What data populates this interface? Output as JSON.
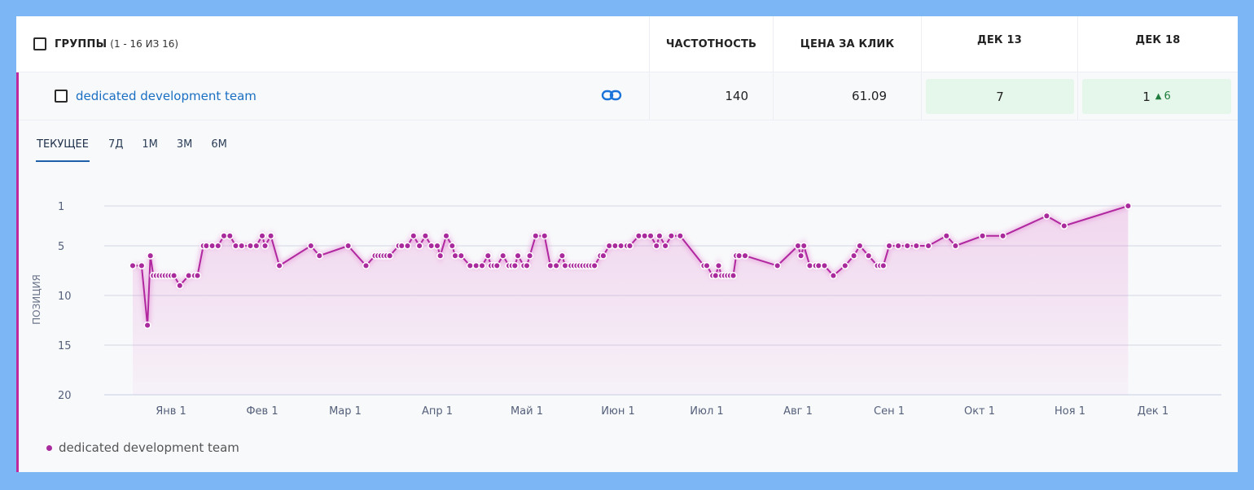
{
  "header": {
    "groups_label": "ГРУППЫ",
    "groups_count": "(1 - 16 ИЗ 16)",
    "frequency_label": "ЧАСТОТНОСТЬ",
    "cpc_label": "ЦЕНА ЗА КЛИК",
    "date1_label": "ДЕК 13",
    "date2_label": "ДЕК 18"
  },
  "row": {
    "keyword": "dedicated development team",
    "frequency": "140",
    "cpc": "61.09",
    "date1_position": "7",
    "date2_position": "1",
    "date2_change": "6"
  },
  "tabs": [
    "ТЕКУЩЕЕ",
    "7Д",
    "1М",
    "3М",
    "6М"
  ],
  "chart_data": {
    "type": "line",
    "ylabel": "ПОЗИЦИЯ",
    "y_reversed": true,
    "ylim": [
      1,
      20
    ],
    "yticks": [
      "1",
      "5",
      "10",
      "15",
      "20"
    ],
    "xticks": [
      "Янв 1",
      "Фев 1",
      "Мар 1",
      "Апр 1",
      "Май 1",
      "Июн 1",
      "Июл 1",
      "Авг 1",
      "Сен 1",
      "Окт 1",
      "Ноя 1",
      "Дек 1"
    ],
    "grid": true,
    "legend_position": "bottom-left",
    "series": [
      {
        "name": "dedicated development team",
        "color": "#a92a9c",
        "points": [
          [
            "2023-12-19",
            7
          ],
          [
            "2023-12-22",
            7
          ],
          [
            "2023-12-24",
            13
          ],
          [
            "2023-12-25",
            6
          ],
          [
            "2023-12-26",
            8
          ],
          [
            "2023-12-27",
            8
          ],
          [
            "2023-12-28",
            8
          ],
          [
            "2023-12-29",
            8
          ],
          [
            "2023-12-30",
            8
          ],
          [
            "2023-12-31",
            8
          ],
          [
            "2024-01-01",
            8
          ],
          [
            "2024-01-02",
            8
          ],
          [
            "2024-01-04",
            9
          ],
          [
            "2024-01-07",
            8
          ],
          [
            "2024-01-09",
            8
          ],
          [
            "2024-01-10",
            8
          ],
          [
            "2024-01-12",
            5
          ],
          [
            "2024-01-13",
            5
          ],
          [
            "2024-01-15",
            5
          ],
          [
            "2024-01-17",
            5
          ],
          [
            "2024-01-19",
            4
          ],
          [
            "2024-01-21",
            4
          ],
          [
            "2024-01-23",
            5
          ],
          [
            "2024-01-25",
            5
          ],
          [
            "2024-01-28",
            5
          ],
          [
            "2024-01-30",
            5
          ],
          [
            "2024-02-01",
            4
          ],
          [
            "2024-02-02",
            5
          ],
          [
            "2024-02-04",
            4
          ],
          [
            "2024-02-07",
            7
          ],
          [
            "2024-02-18",
            5
          ],
          [
            "2024-02-21",
            6
          ],
          [
            "2024-03-02",
            5
          ],
          [
            "2024-03-08",
            7
          ],
          [
            "2024-03-11",
            6
          ],
          [
            "2024-03-12",
            6
          ],
          [
            "2024-03-13",
            6
          ],
          [
            "2024-03-14",
            6
          ],
          [
            "2024-03-15",
            6
          ],
          [
            "2024-03-16",
            6
          ],
          [
            "2024-03-19",
            5
          ],
          [
            "2024-03-20",
            5
          ],
          [
            "2024-03-22",
            5
          ],
          [
            "2024-03-24",
            4
          ],
          [
            "2024-03-26",
            5
          ],
          [
            "2024-03-28",
            4
          ],
          [
            "2024-03-30",
            5
          ],
          [
            "2024-04-01",
            5
          ],
          [
            "2024-04-02",
            6
          ],
          [
            "2024-04-04",
            4
          ],
          [
            "2024-04-06",
            5
          ],
          [
            "2024-04-07",
            6
          ],
          [
            "2024-04-09",
            6
          ],
          [
            "2024-04-12",
            7
          ],
          [
            "2024-04-14",
            7
          ],
          [
            "2024-04-16",
            7
          ],
          [
            "2024-04-18",
            6
          ],
          [
            "2024-04-19",
            7
          ],
          [
            "2024-04-20",
            7
          ],
          [
            "2024-04-21",
            7
          ],
          [
            "2024-04-23",
            6
          ],
          [
            "2024-04-25",
            7
          ],
          [
            "2024-04-26",
            7
          ],
          [
            "2024-04-27",
            7
          ],
          [
            "2024-04-28",
            6
          ],
          [
            "2024-04-30",
            7
          ],
          [
            "2024-05-01",
            7
          ],
          [
            "2024-05-02",
            6
          ],
          [
            "2024-05-04",
            4
          ],
          [
            "2024-05-07",
            4
          ],
          [
            "2024-05-09",
            7
          ],
          [
            "2024-05-11",
            7
          ],
          [
            "2024-05-13",
            6
          ],
          [
            "2024-05-14",
            7
          ],
          [
            "2024-05-16",
            7
          ],
          [
            "2024-05-17",
            7
          ],
          [
            "2024-05-18",
            7
          ],
          [
            "2024-05-19",
            7
          ],
          [
            "2024-05-20",
            7
          ],
          [
            "2024-05-21",
            7
          ],
          [
            "2024-05-22",
            7
          ],
          [
            "2024-05-23",
            7
          ],
          [
            "2024-05-24",
            7
          ],
          [
            "2024-05-26",
            6
          ],
          [
            "2024-05-27",
            6
          ],
          [
            "2024-05-29",
            5
          ],
          [
            "2024-05-31",
            5
          ],
          [
            "2024-06-02",
            5
          ],
          [
            "2024-06-04",
            5
          ],
          [
            "2024-06-05",
            5
          ],
          [
            "2024-06-08",
            4
          ],
          [
            "2024-06-10",
            4
          ],
          [
            "2024-06-12",
            4
          ],
          [
            "2024-06-14",
            5
          ],
          [
            "2024-06-15",
            4
          ],
          [
            "2024-06-17",
            5
          ],
          [
            "2024-06-19",
            4
          ],
          [
            "2024-06-22",
            4
          ],
          [
            "2024-06-30",
            7
          ],
          [
            "2024-07-01",
            7
          ],
          [
            "2024-07-03",
            8
          ],
          [
            "2024-07-04",
            8
          ],
          [
            "2024-07-05",
            7
          ],
          [
            "2024-07-06",
            8
          ],
          [
            "2024-07-07",
            8
          ],
          [
            "2024-07-08",
            8
          ],
          [
            "2024-07-09",
            8
          ],
          [
            "2024-07-10",
            8
          ],
          [
            "2024-07-11",
            6
          ],
          [
            "2024-07-12",
            6
          ],
          [
            "2024-07-14",
            6
          ],
          [
            "2024-07-25",
            7
          ],
          [
            "2024-08-01",
            5
          ],
          [
            "2024-08-02",
            6
          ],
          [
            "2024-08-03",
            5
          ],
          [
            "2024-08-05",
            7
          ],
          [
            "2024-08-07",
            7
          ],
          [
            "2024-08-08",
            7
          ],
          [
            "2024-08-10",
            7
          ],
          [
            "2024-08-13",
            8
          ],
          [
            "2024-08-17",
            7
          ],
          [
            "2024-08-20",
            6
          ],
          [
            "2024-08-22",
            5
          ],
          [
            "2024-08-25",
            6
          ],
          [
            "2024-08-28",
            7
          ],
          [
            "2024-08-29",
            7
          ],
          [
            "2024-08-30",
            7
          ],
          [
            "2024-09-01",
            5
          ],
          [
            "2024-09-04",
            5
          ],
          [
            "2024-09-07",
            5
          ],
          [
            "2024-09-10",
            5
          ],
          [
            "2024-09-14",
            5
          ],
          [
            "2024-09-20",
            4
          ],
          [
            "2024-09-23",
            5
          ],
          [
            "2024-10-02",
            4
          ],
          [
            "2024-10-09",
            4
          ],
          [
            "2024-10-24",
            2
          ],
          [
            "2024-10-30",
            3
          ],
          [
            "2024-11-22",
            1
          ]
        ]
      }
    ]
  }
}
